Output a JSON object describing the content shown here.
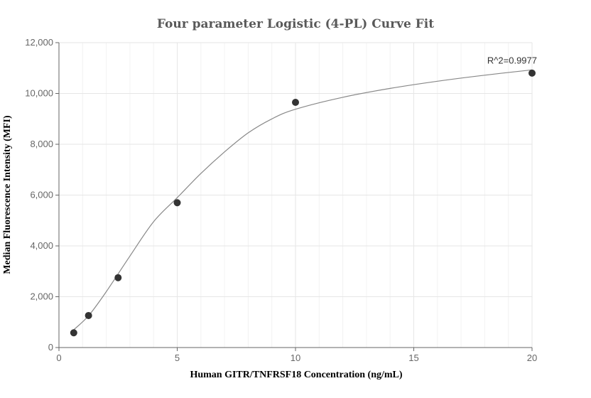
{
  "chart_data": {
    "type": "scatter",
    "title": "Four parameter Logistic (4-PL) Curve Fit",
    "xlabel": "Human GITR/TNFRSF18 Concentration (ng/mL)",
    "ylabel": "Median Fluorescence Intensity (MFI)",
    "xlim": [
      0,
      20
    ],
    "ylim": [
      0,
      12000
    ],
    "x_ticks": [
      0,
      5,
      10,
      15,
      20
    ],
    "x_tick_labels": [
      "0",
      "5",
      "10",
      "15",
      "20"
    ],
    "y_ticks": [
      0,
      2000,
      4000,
      6000,
      8000,
      10000,
      12000
    ],
    "y_tick_labels": [
      "0",
      "2,000",
      "4,000",
      "6,000",
      "8,000",
      "10,000",
      "12,000"
    ],
    "grid": true,
    "series": [
      {
        "kind": "points",
        "x": [
          0.625,
          1.25,
          2.5,
          5,
          10,
          20
        ],
        "y": [
          580,
          1260,
          2750,
          5700,
          9650,
          10800
        ]
      },
      {
        "kind": "fit-curve",
        "x": [
          0.625,
          1.25,
          2.0,
          3.0,
          4.0,
          5.0,
          6.0,
          7.0,
          8.0,
          9.0,
          10.0,
          12.0,
          14.0,
          16.0,
          18.0,
          20.0
        ],
        "y": [
          700,
          1250,
          2200,
          3600,
          4950,
          5900,
          6850,
          7700,
          8450,
          9000,
          9380,
          9850,
          10200,
          10480,
          10720,
          10930
        ]
      }
    ],
    "annotations": [
      {
        "text": "R^2=0.9977",
        "x": 20,
        "y": 10930
      }
    ],
    "colors": {
      "points": "#333333",
      "curve": "#888888",
      "grid": "#e6e6e6",
      "axis": "#666666"
    }
  }
}
